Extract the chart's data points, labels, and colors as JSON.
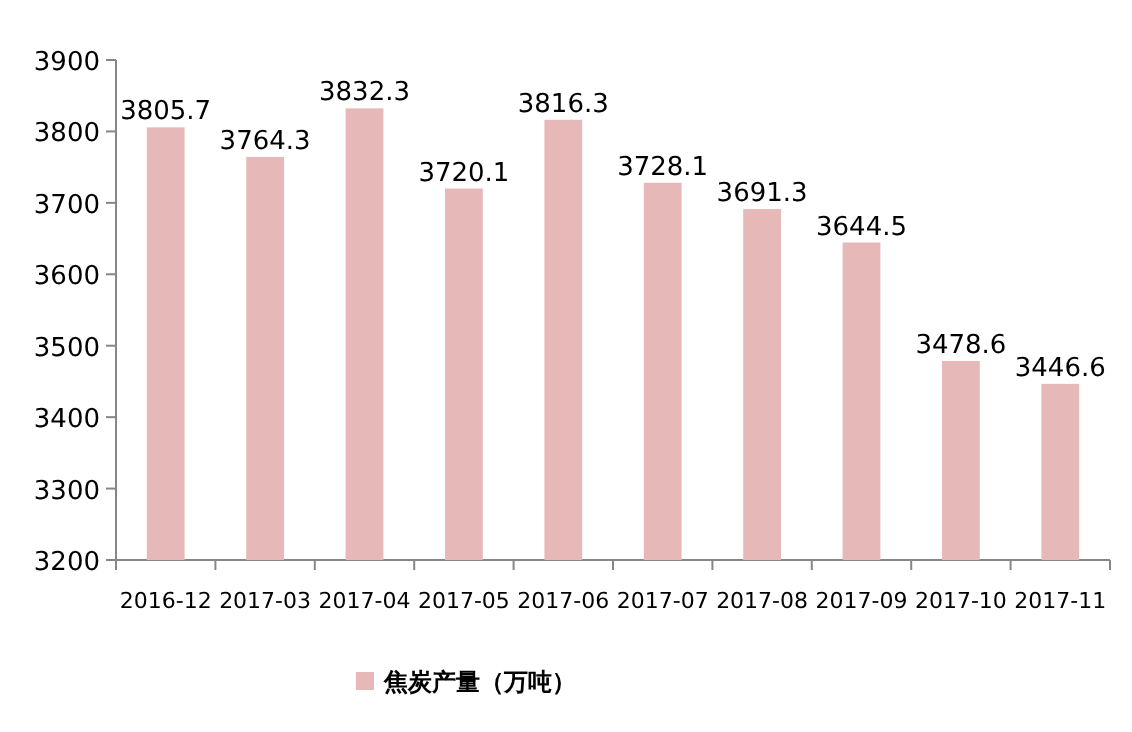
{
  "chart_data": {
    "type": "bar",
    "categories": [
      "2016-12",
      "2017-03",
      "2017-04",
      "2017-05",
      "2017-06",
      "2017-07",
      "2017-08",
      "2017-09",
      "2017-10",
      "2017-11"
    ],
    "series": [
      {
        "name": "焦炭产量（万吨）",
        "color": "#e6b8b7",
        "values": [
          3805.7,
          3764.3,
          3832.3,
          3720.1,
          3816.3,
          3728.1,
          3691.3,
          3644.5,
          3478.6,
          3446.6
        ]
      }
    ],
    "ylim": [
      3200,
      3900
    ],
    "yticks": [
      3200,
      3300,
      3400,
      3500,
      3600,
      3700,
      3800,
      3900
    ],
    "data_labels": true,
    "grid": false,
    "legend": "bottom left"
  }
}
